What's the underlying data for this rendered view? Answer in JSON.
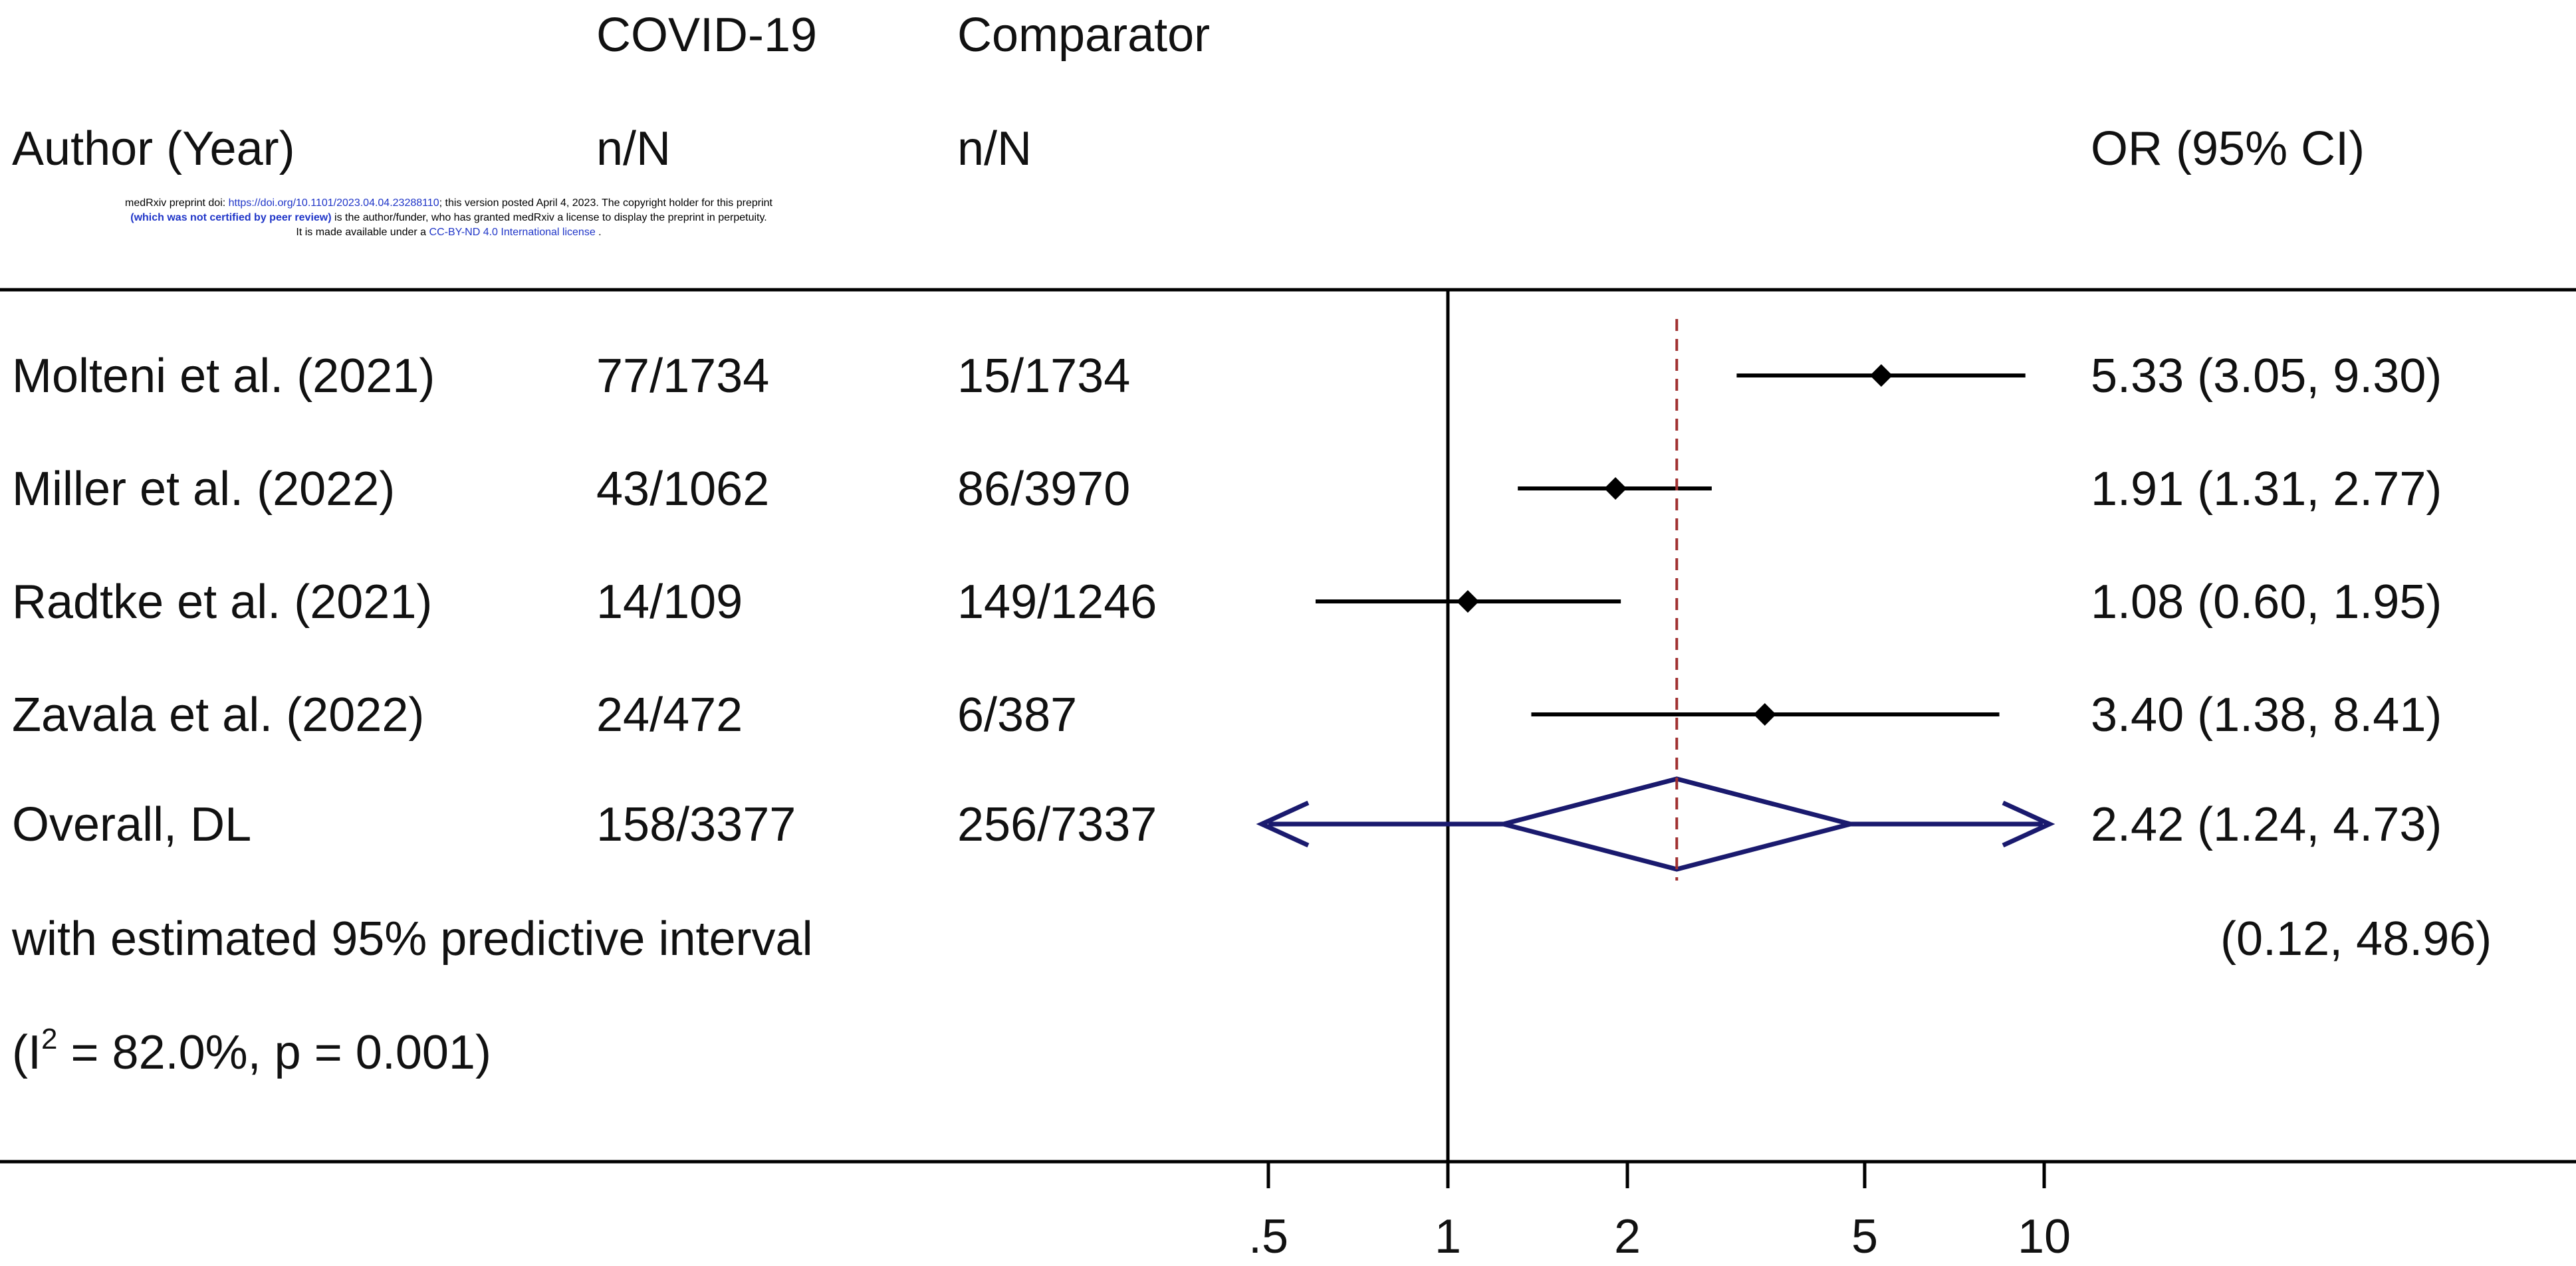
{
  "notice": {
    "line1_prefix": "medRxiv preprint doi: ",
    "line1_doi": "https://doi.org/10.1101/2023.04.04.23288110",
    "line1_suffix": "; this version posted April 4, 2023. The copyright holder for this preprint",
    "line2_bold": "(which was not certified by peer review)",
    "line2_rest": " is the author/funder, who has granted medRxiv a license to display the preprint in perpetuity.",
    "line3_prefix": "It is made available under a ",
    "line3_license": "CC-BY-ND 4.0 International license",
    "line3_suffix": " ."
  },
  "colors": {
    "study_marker": "#000000",
    "pooled": "#1a1a6e",
    "overall_line": "#a03030",
    "axis": "#000000"
  },
  "chart_data": {
    "type": "forest",
    "scale": "log",
    "xlim": [
      0.5,
      10
    ],
    "header": {
      "group1": "COVID-19",
      "group2": "Comparator",
      "col_study": "Author (Year)",
      "col_n1": "n/N",
      "col_n2": "n/N",
      "col_effect": "OR (95% CI)"
    },
    "studies": [
      {
        "label": "Molteni et al. (2021)",
        "n1": "77/1734",
        "n2": "15/1734",
        "or": 5.33,
        "lo": 3.05,
        "hi": 9.3,
        "ci_text": "5.33 (3.05, 9.30)"
      },
      {
        "label": "Miller et al. (2022)",
        "n1": "43/1062",
        "n2": "86/3970",
        "or": 1.91,
        "lo": 1.31,
        "hi": 2.77,
        "ci_text": "1.91 (1.31, 2.77)"
      },
      {
        "label": "Radtke et al. (2021)",
        "n1": "14/109",
        "n2": "149/1246",
        "or": 1.08,
        "lo": 0.6,
        "hi": 1.95,
        "ci_text": "1.08 (0.60, 1.95)"
      },
      {
        "label": "Zavala et al. (2022)",
        "n1": "24/472",
        "n2": "6/387",
        "or": 3.4,
        "lo": 1.38,
        "hi": 8.41,
        "ci_text": "3.40 (1.38, 8.41)"
      }
    ],
    "overall": {
      "label": "Overall, DL",
      "n1": "158/3377",
      "n2": "256/7337",
      "or": 2.42,
      "lo": 1.24,
      "hi": 4.73,
      "ci_text": "2.42 (1.24, 4.73)",
      "pi_lo": 0.12,
      "pi_hi": 48.96
    },
    "predictive_label": "with estimated 95% predictive interval",
    "predictive_text": "(0.12, 48.96)",
    "heterogeneity": {
      "prefix": "(I",
      "sup": "2",
      "suffix": " = 82.0%, p = 0.001)"
    },
    "null_value": 1,
    "ticks": [
      {
        "value": 0.5,
        "label": ".5"
      },
      {
        "value": 1,
        "label": "1"
      },
      {
        "value": 2,
        "label": "2"
      },
      {
        "value": 5,
        "label": "5"
      },
      {
        "value": 10,
        "label": "10"
      }
    ]
  }
}
